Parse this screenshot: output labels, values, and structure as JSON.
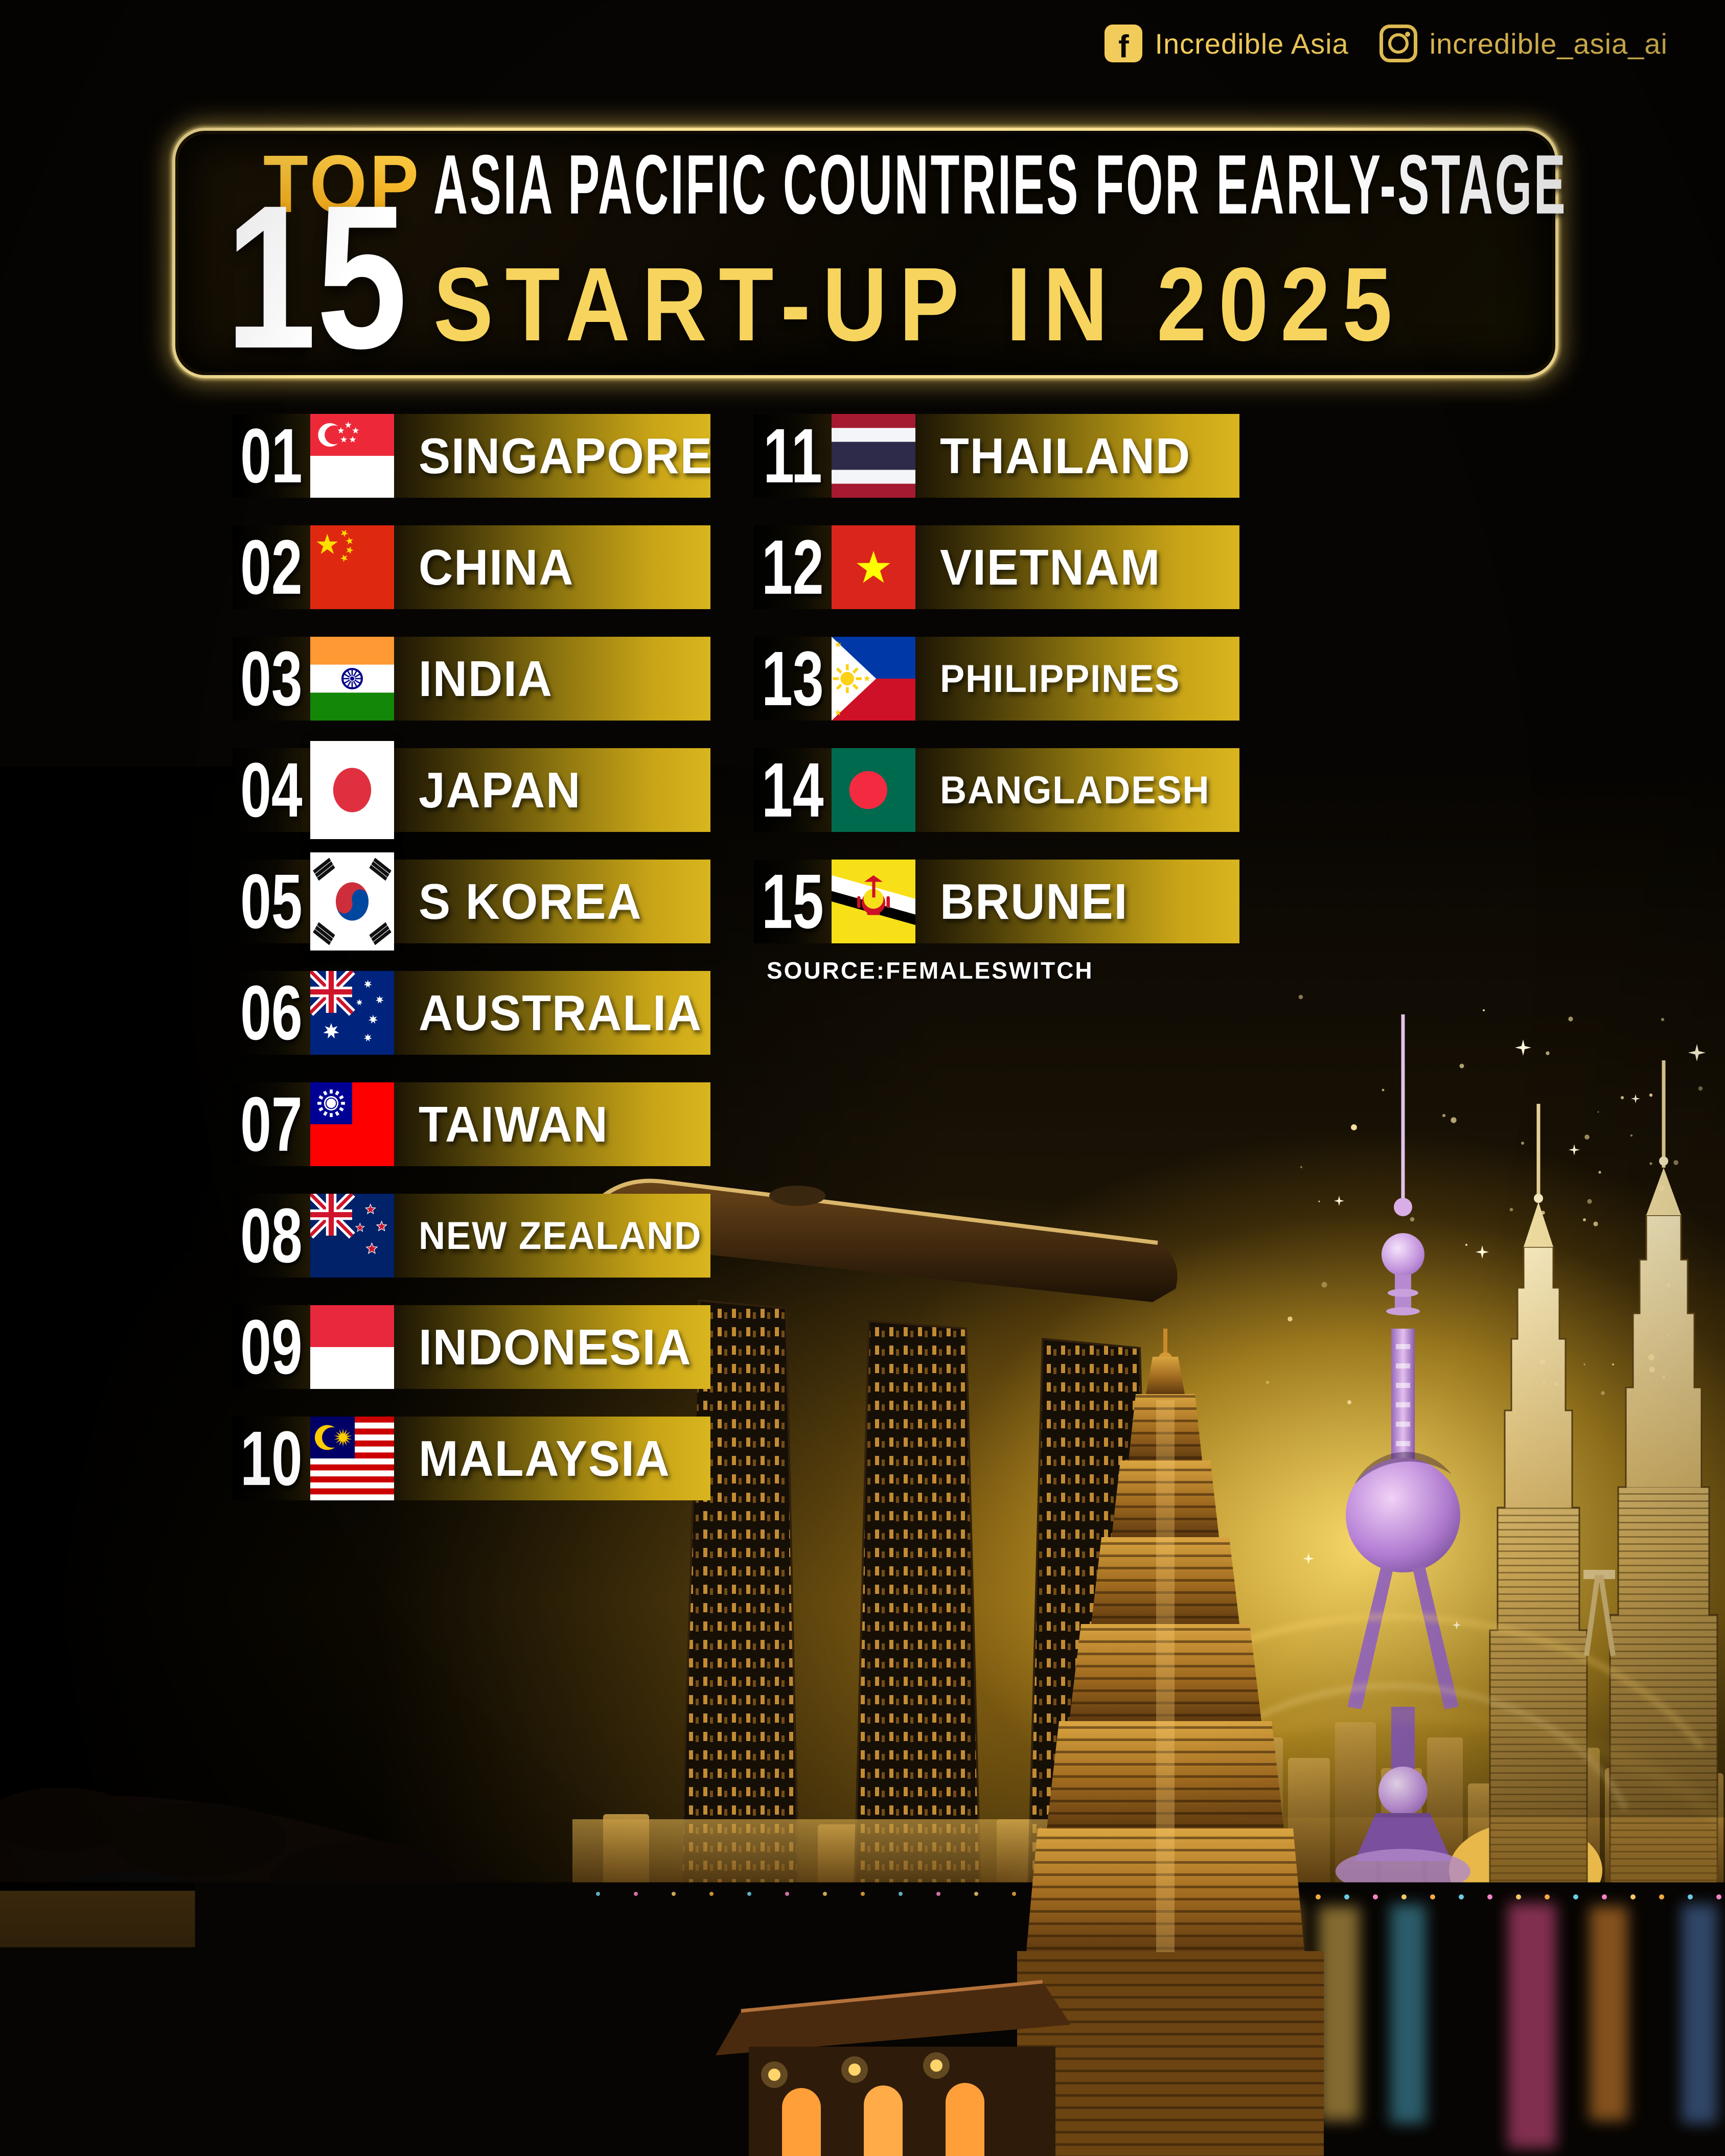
{
  "social": {
    "facebook_label": "Incredible Asia",
    "instagram_label": "incredible_asia_ai"
  },
  "title": {
    "kicker": "TOP",
    "number": "15",
    "line1": "ASIA PACIFIC COUNTRIES FOR EARLY-STAGE",
    "line2": "START-UP IN 2025"
  },
  "ranking": [
    {
      "rank": "01",
      "country": "SINGAPORE",
      "flag": "singapore"
    },
    {
      "rank": "02",
      "country": "CHINA",
      "flag": "china"
    },
    {
      "rank": "03",
      "country": "INDIA",
      "flag": "india"
    },
    {
      "rank": "04",
      "country": "JAPAN",
      "flag": "japan"
    },
    {
      "rank": "05",
      "country": "S KOREA",
      "flag": "skorea"
    },
    {
      "rank": "06",
      "country": "AUSTRALIA",
      "flag": "australia"
    },
    {
      "rank": "07",
      "country": "TAIWAN",
      "flag": "taiwan"
    },
    {
      "rank": "08",
      "country": "NEW ZEALAND",
      "flag": "newzealand"
    },
    {
      "rank": "09",
      "country": "INDONESIA",
      "flag": "indonesia"
    },
    {
      "rank": "10",
      "country": "MALAYSIA",
      "flag": "malaysia"
    },
    {
      "rank": "11",
      "country": "THAILAND",
      "flag": "thailand"
    },
    {
      "rank": "12",
      "country": "VIETNAM",
      "flag": "vietnam"
    },
    {
      "rank": "13",
      "country": "PHILIPPINES",
      "flag": "philippines"
    },
    {
      "rank": "14",
      "country": "BANGLADESH",
      "flag": "bangladesh"
    },
    {
      "rank": "15",
      "country": "BRUNEI",
      "flag": "brunei"
    }
  ],
  "source_label": "SOURCE:FEMALESWITCH",
  "logo_text": "INCREDIBLE ASIA",
  "colors": {
    "gold_accent": "#F2CC5A",
    "bar_bright_gold": "#D9B51F",
    "title_yellow": "#F7D45E",
    "kicker_orange": "#F5B715"
  }
}
